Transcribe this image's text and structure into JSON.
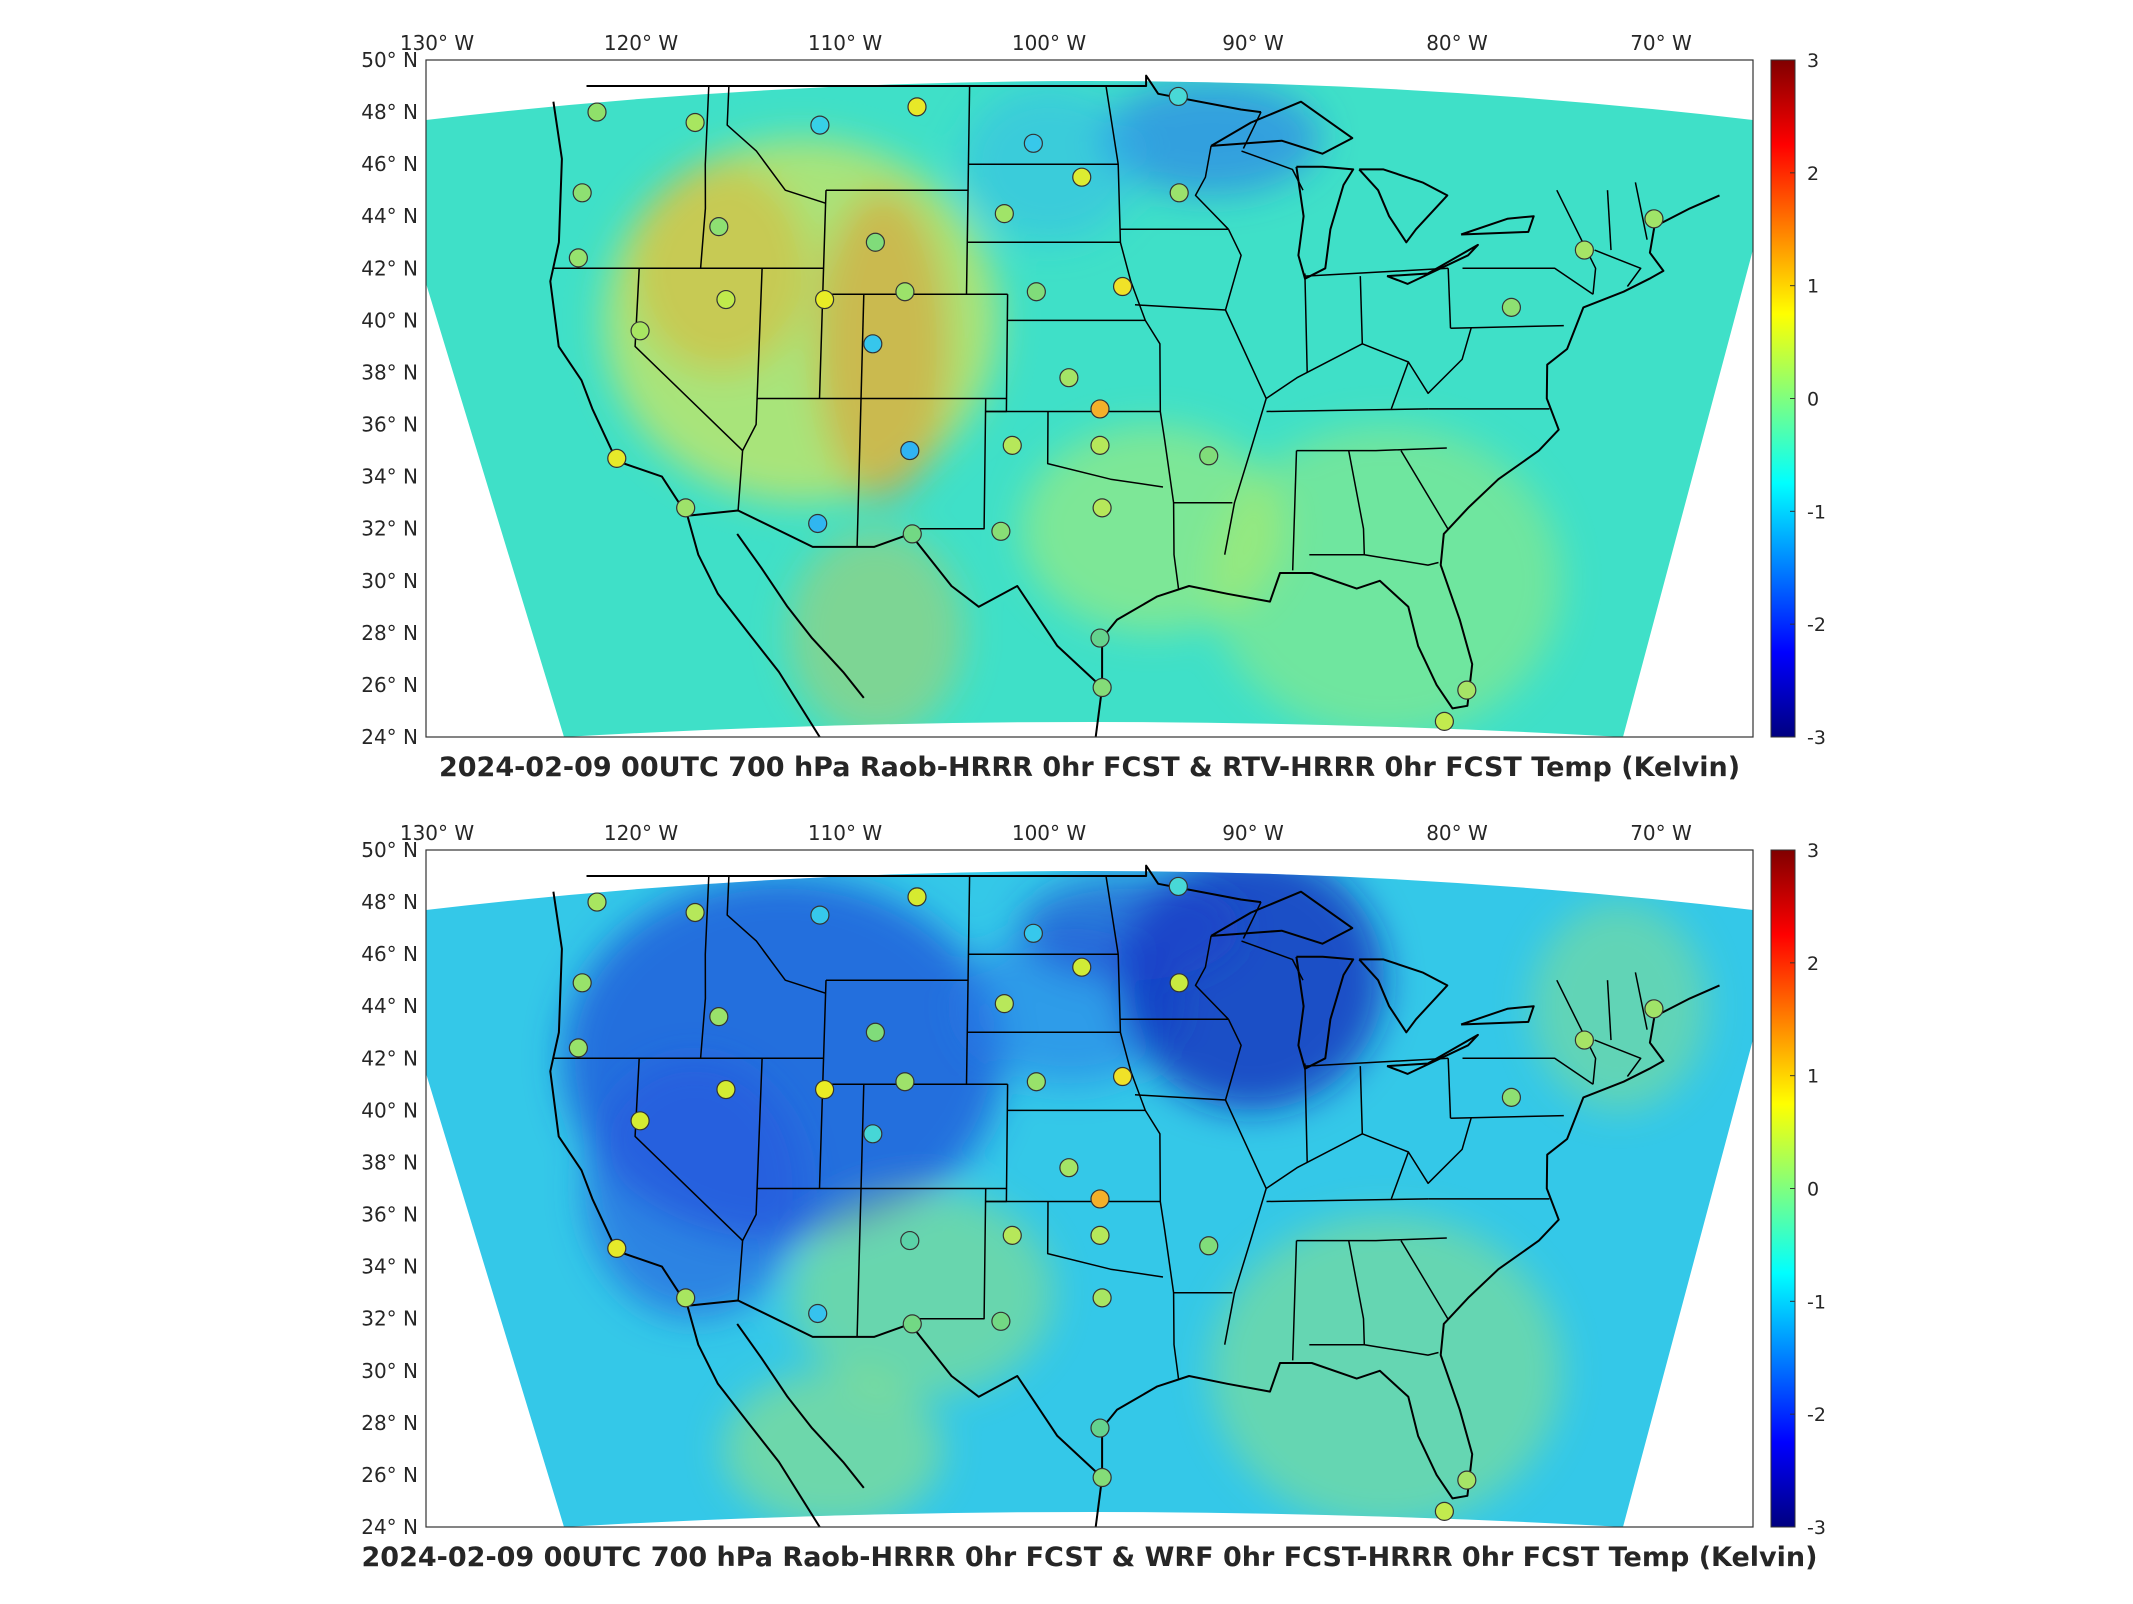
{
  "maps": [
    {
      "title": "2024-02-09 00UTC 700 hPa Raob-HRRR 0hr FCST & RTV-HRRR 0hr FCST Temp (Kelvin)",
      "colorbar": {
        "min": -3,
        "max": 3,
        "ticks": [
          "3",
          "2",
          "1",
          "0",
          "-1",
          "-2",
          "-3"
        ]
      },
      "base_color": "#3fe0c8",
      "patches": [
        {
          "lon": -112,
          "lat": 40,
          "rx": 9,
          "ry": 7,
          "color": "#ffe83a",
          "o": 0.55
        },
        {
          "lon": -108,
          "lat": 39,
          "rx": 3,
          "ry": 6,
          "color": "#f28a1e",
          "o": 0.45
        },
        {
          "lon": -116,
          "lat": 42,
          "rx": 4,
          "ry": 4,
          "color": "#f6a21e",
          "o": 0.4
        },
        {
          "lon": -92,
          "lat": 47,
          "rx": 5,
          "ry": 2.2,
          "color": "#2a6cf0",
          "o": 0.55
        },
        {
          "lon": -100,
          "lat": 46,
          "rx": 4,
          "ry": 3,
          "color": "#30b4f0",
          "o": 0.45
        },
        {
          "lon": -95,
          "lat": 32,
          "rx": 6,
          "ry": 4,
          "color": "#c8f05a",
          "o": 0.45
        },
        {
          "lon": -108,
          "lat": 28,
          "rx": 4,
          "ry": 4,
          "color": "#f0c030",
          "o": 0.35
        },
        {
          "lon": -84,
          "lat": 30,
          "rx": 8,
          "ry": 6,
          "color": "#b8ee60",
          "o": 0.4
        }
      ],
      "stations": [
        {
          "lon": -122.5,
          "lat": 48.0,
          "c": "#8fe06a"
        },
        {
          "lon": -117.6,
          "lat": 47.6,
          "c": "#a8e660"
        },
        {
          "lon": -111.4,
          "lat": 47.5,
          "c": "#37d0e6"
        },
        {
          "lon": -106.6,
          "lat": 48.2,
          "c": "#e8e828"
        },
        {
          "lon": -100.8,
          "lat": 46.8,
          "c": "#37c8ea"
        },
        {
          "lon": -93.6,
          "lat": 48.6,
          "c": "#48d8d6"
        },
        {
          "lon": -123.0,
          "lat": 44.9,
          "c": "#8ee072"
        },
        {
          "lon": -116.2,
          "lat": 43.6,
          "c": "#8ee072"
        },
        {
          "lon": -108.5,
          "lat": 43.0,
          "c": "#80dc7a"
        },
        {
          "lon": -102.2,
          "lat": 44.1,
          "c": "#a0e468"
        },
        {
          "lon": -98.4,
          "lat": 45.5,
          "c": "#dcec32"
        },
        {
          "lon": -93.6,
          "lat": 44.9,
          "c": "#9ae26c"
        },
        {
          "lon": -123.0,
          "lat": 42.4,
          "c": "#96e26e"
        },
        {
          "lon": -115.7,
          "lat": 40.8,
          "c": "#c0ea4c"
        },
        {
          "lon": -110.9,
          "lat": 40.8,
          "c": "#e8ec26"
        },
        {
          "lon": -107.0,
          "lat": 41.1,
          "c": "#9ce26a"
        },
        {
          "lon": -100.6,
          "lat": 41.1,
          "c": "#80dc7a"
        },
        {
          "lon": -96.4,
          "lat": 41.3,
          "c": "#f0e228"
        },
        {
          "lon": -119.8,
          "lat": 39.6,
          "c": "#a8e662"
        },
        {
          "lon": -108.5,
          "lat": 39.1,
          "c": "#36c6ec"
        },
        {
          "lon": -99.0,
          "lat": 37.8,
          "c": "#a4e466"
        },
        {
          "lon": -97.5,
          "lat": 36.6,
          "c": "#f4b02a"
        },
        {
          "lon": -97.5,
          "lat": 35.2,
          "c": "#b6e85a"
        },
        {
          "lon": -101.7,
          "lat": 35.2,
          "c": "#b6e85a"
        },
        {
          "lon": -106.6,
          "lat": 35.0,
          "c": "#30b4f2"
        },
        {
          "lon": -92.3,
          "lat": 34.8,
          "c": "#80dc7a"
        },
        {
          "lon": -120.6,
          "lat": 34.7,
          "c": "#e6ea2a"
        },
        {
          "lon": -117.2,
          "lat": 32.8,
          "c": "#9ee26a"
        },
        {
          "lon": -110.9,
          "lat": 32.2,
          "c": "#30b6f0"
        },
        {
          "lon": -106.4,
          "lat": 31.8,
          "c": "#72d884"
        },
        {
          "lon": -102.2,
          "lat": 31.9,
          "c": "#88de76"
        },
        {
          "lon": -97.4,
          "lat": 32.8,
          "c": "#b6e85a"
        },
        {
          "lon": -97.5,
          "lat": 27.8,
          "c": "#64d28e"
        },
        {
          "lon": -97.4,
          "lat": 25.9,
          "c": "#84dc78"
        },
        {
          "lon": -80.4,
          "lat": 25.8,
          "c": "#a6e466"
        },
        {
          "lon": -81.5,
          "lat": 24.6,
          "c": "#c2ea4e"
        },
        {
          "lon": -77.5,
          "lat": 40.5,
          "c": "#8ee072"
        },
        {
          "lon": -73.8,
          "lat": 42.7,
          "c": "#a6e466"
        },
        {
          "lon": -70.3,
          "lat": 43.9,
          "c": "#a0e468"
        }
      ]
    },
    {
      "title": "2024-02-09 00UTC 700 hPa Raob-HRRR 0hr FCST & WRF 0hr FCST-HRRR 0hr FCST Temp (Kelvin)",
      "colorbar": {
        "min": -3,
        "max": 3,
        "ticks": [
          "3",
          "2",
          "1",
          "0",
          "-1",
          "-2",
          "-3"
        ]
      },
      "base_color": "#34c8e8",
      "patches": [
        {
          "lon": -113,
          "lat": 42,
          "rx": 10,
          "ry": 7,
          "color": "#1e48d8",
          "o": 0.7
        },
        {
          "lon": -117,
          "lat": 37,
          "rx": 5,
          "ry": 5,
          "color": "#2456e0",
          "o": 0.6
        },
        {
          "lon": -99,
          "lat": 44,
          "rx": 5,
          "ry": 3,
          "color": "#2a78ea",
          "o": 0.55
        },
        {
          "lon": -90,
          "lat": 45,
          "rx": 6,
          "ry": 5,
          "color": "#0c20b8",
          "o": 0.7
        },
        {
          "lon": -96,
          "lat": 47,
          "rx": 5,
          "ry": 2,
          "color": "#1c3ccc",
          "o": 0.55
        },
        {
          "lon": -106,
          "lat": 33,
          "rx": 6,
          "ry": 4,
          "color": "#b4ec5a",
          "o": 0.4
        },
        {
          "lon": -110,
          "lat": 27,
          "rx": 5,
          "ry": 3,
          "color": "#c4ee50",
          "o": 0.4
        },
        {
          "lon": -84,
          "lat": 30,
          "rx": 8,
          "ry": 6,
          "color": "#b0ea5e",
          "o": 0.4
        },
        {
          "lon": -72,
          "lat": 44,
          "rx": 4,
          "ry": 4,
          "color": "#b4ea5c",
          "o": 0.35
        }
      ],
      "stations": [
        {
          "lon": -122.5,
          "lat": 48.0,
          "c": "#a8e660"
        },
        {
          "lon": -117.6,
          "lat": 47.6,
          "c": "#b6e85a"
        },
        {
          "lon": -111.4,
          "lat": 47.5,
          "c": "#36c8ec"
        },
        {
          "lon": -106.6,
          "lat": 48.2,
          "c": "#d6ea30"
        },
        {
          "lon": -100.8,
          "lat": 46.8,
          "c": "#36c8ec"
        },
        {
          "lon": -93.6,
          "lat": 48.6,
          "c": "#48d8d6"
        },
        {
          "lon": -123.0,
          "lat": 44.9,
          "c": "#98e26a"
        },
        {
          "lon": -116.2,
          "lat": 43.6,
          "c": "#9ae26a"
        },
        {
          "lon": -108.5,
          "lat": 43.0,
          "c": "#80dc7a"
        },
        {
          "lon": -102.2,
          "lat": 44.1,
          "c": "#b8e85a"
        },
        {
          "lon": -98.4,
          "lat": 45.5,
          "c": "#d0ec36"
        },
        {
          "lon": -93.6,
          "lat": 44.9,
          "c": "#c8ea40"
        },
        {
          "lon": -123.0,
          "lat": 42.4,
          "c": "#98e26a"
        },
        {
          "lon": -115.7,
          "lat": 40.8,
          "c": "#d4ec32"
        },
        {
          "lon": -110.9,
          "lat": 40.8,
          "c": "#eaec24"
        },
        {
          "lon": -107.0,
          "lat": 41.1,
          "c": "#9ee26a"
        },
        {
          "lon": -100.6,
          "lat": 41.1,
          "c": "#98e26a"
        },
        {
          "lon": -96.4,
          "lat": 41.3,
          "c": "#f0e228"
        },
        {
          "lon": -119.8,
          "lat": 39.6,
          "c": "#d4ec32"
        },
        {
          "lon": -108.5,
          "lat": 39.1,
          "c": "#46d6d6"
        },
        {
          "lon": -99.0,
          "lat": 37.8,
          "c": "#a4e466"
        },
        {
          "lon": -97.5,
          "lat": 36.6,
          "c": "#f4b02a"
        },
        {
          "lon": -97.5,
          "lat": 35.2,
          "c": "#b6e85a"
        },
        {
          "lon": -101.7,
          "lat": 35.2,
          "c": "#b6e85a"
        },
        {
          "lon": -106.6,
          "lat": 35.0,
          "c": "#5ad2a8"
        },
        {
          "lon": -92.3,
          "lat": 34.8,
          "c": "#80dc7a"
        },
        {
          "lon": -120.6,
          "lat": 34.7,
          "c": "#e6ea2a"
        },
        {
          "lon": -117.2,
          "lat": 32.8,
          "c": "#a8e660"
        },
        {
          "lon": -110.9,
          "lat": 32.2,
          "c": "#36c2ee"
        },
        {
          "lon": -106.4,
          "lat": 31.8,
          "c": "#72d884"
        },
        {
          "lon": -102.2,
          "lat": 31.9,
          "c": "#72d884"
        },
        {
          "lon": -97.4,
          "lat": 32.8,
          "c": "#a8e662"
        },
        {
          "lon": -97.5,
          "lat": 27.8,
          "c": "#64d28e"
        },
        {
          "lon": -97.4,
          "lat": 25.9,
          "c": "#84dc78"
        },
        {
          "lon": -80.4,
          "lat": 25.8,
          "c": "#a6e466"
        },
        {
          "lon": -81.5,
          "lat": 24.6,
          "c": "#c2ea4e"
        },
        {
          "lon": -77.5,
          "lat": 40.5,
          "c": "#8ee072"
        },
        {
          "lon": -73.8,
          "lat": 42.7,
          "c": "#a6e466"
        },
        {
          "lon": -70.3,
          "lat": 43.9,
          "c": "#a0e468"
        }
      ]
    }
  ],
  "lon_ticks": [
    {
      "value": -130,
      "label": "130° W"
    },
    {
      "value": -120,
      "label": "120° W"
    },
    {
      "value": -110,
      "label": "110° W"
    },
    {
      "value": -100,
      "label": "100° W"
    },
    {
      "value": -90,
      "label": "90° W"
    },
    {
      "value": -80,
      "label": "80° W"
    },
    {
      "value": -70,
      "label": "70° W"
    }
  ],
  "lat_ticks": [
    {
      "value": 50,
      "label": "50° N"
    },
    {
      "value": 48,
      "label": "48° N"
    },
    {
      "value": 46,
      "label": "46° N"
    },
    {
      "value": 44,
      "label": "44° N"
    },
    {
      "value": 42,
      "label": "42° N"
    },
    {
      "value": 40,
      "label": "40° N"
    },
    {
      "value": 38,
      "label": "38° N"
    },
    {
      "value": 36,
      "label": "36° N"
    },
    {
      "value": 34,
      "label": "34° N"
    },
    {
      "value": 32,
      "label": "32° N"
    },
    {
      "value": 30,
      "label": "30° N"
    },
    {
      "value": 28,
      "label": "28° N"
    },
    {
      "value": 26,
      "label": "26° N"
    },
    {
      "value": 24,
      "label": "24° N"
    }
  ]
}
